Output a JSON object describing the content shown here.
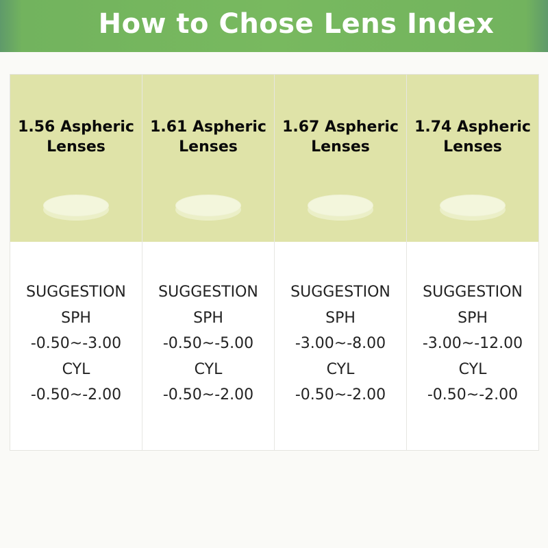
{
  "header": {
    "title": "How to Chose Lens Index"
  },
  "colors": {
    "banner": "#78b95f",
    "header_cells": "#dfe3a8"
  },
  "columns": [
    {
      "name": "1.56 Aspheric",
      "sub": "Lenses",
      "suggestion": "SUGGESTION",
      "sph_label": "SPH",
      "sph": "-0.50~-3.00",
      "cyl_label": "CYL",
      "cyl": "-0.50~-2.00"
    },
    {
      "name": "1.61 Aspheric",
      "sub": "Lenses",
      "suggestion": "SUGGESTION",
      "sph_label": "SPH",
      "sph": "-0.50~-5.00",
      "cyl_label": "CYL",
      "cyl": "-0.50~-2.00"
    },
    {
      "name": "1.67 Aspheric",
      "sub": "Lenses",
      "suggestion": "SUGGESTION",
      "sph_label": "SPH",
      "sph": "-3.00~-8.00",
      "cyl_label": "CYL",
      "cyl": "-0.50~-2.00"
    },
    {
      "name": "1.74 Aspheric",
      "sub": "Lenses",
      "suggestion": "SUGGESTION",
      "sph_label": "SPH",
      "sph": "-3.00~-12.00",
      "cyl_label": "CYL",
      "cyl": "-0.50~-2.00"
    }
  ]
}
